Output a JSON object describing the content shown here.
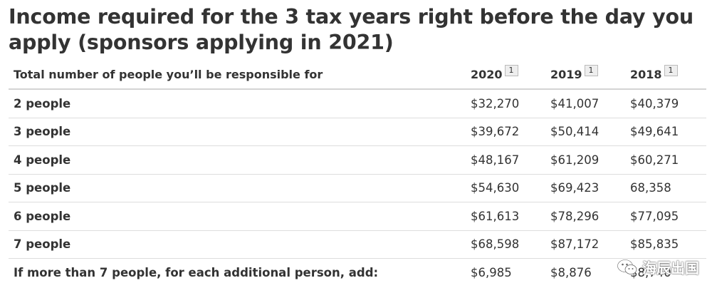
{
  "title": "Income required for the 3 tax years right before the day you apply (sponsors applying in 2021)",
  "table": {
    "header": {
      "label": "Total number of people you’ll be responsible for",
      "years": [
        {
          "year": "2020",
          "footnote": "1"
        },
        {
          "year": "2019",
          "footnote": "1"
        },
        {
          "year": "2018",
          "footnote": "1"
        }
      ]
    },
    "rows": [
      {
        "label": "2 people",
        "values": [
          "$32,270",
          "$41,007",
          "$40,379"
        ]
      },
      {
        "label": "3 people",
        "values": [
          "$39,672",
          "$50,414",
          "$49,641"
        ]
      },
      {
        "label": "4 people",
        "values": [
          "$48,167",
          "$61,209",
          "$60,271"
        ]
      },
      {
        "label": "5 people",
        "values": [
          "$54,630",
          "$69,423",
          "68,358"
        ]
      },
      {
        "label": "6 people",
        "values": [
          "$61,613",
          "$78,296",
          "$77,095"
        ]
      },
      {
        "label": "7 people",
        "values": [
          "$68,598",
          "$87,172",
          "$85,835"
        ]
      },
      {
        "label": "If more than 7 people, for each additional person, add:",
        "values": [
          "$6,985",
          "$8,876",
          "$8,740"
        ]
      }
    ]
  },
  "watermark": {
    "text": "海辰出国",
    "icon": "wechat-icon"
  }
}
